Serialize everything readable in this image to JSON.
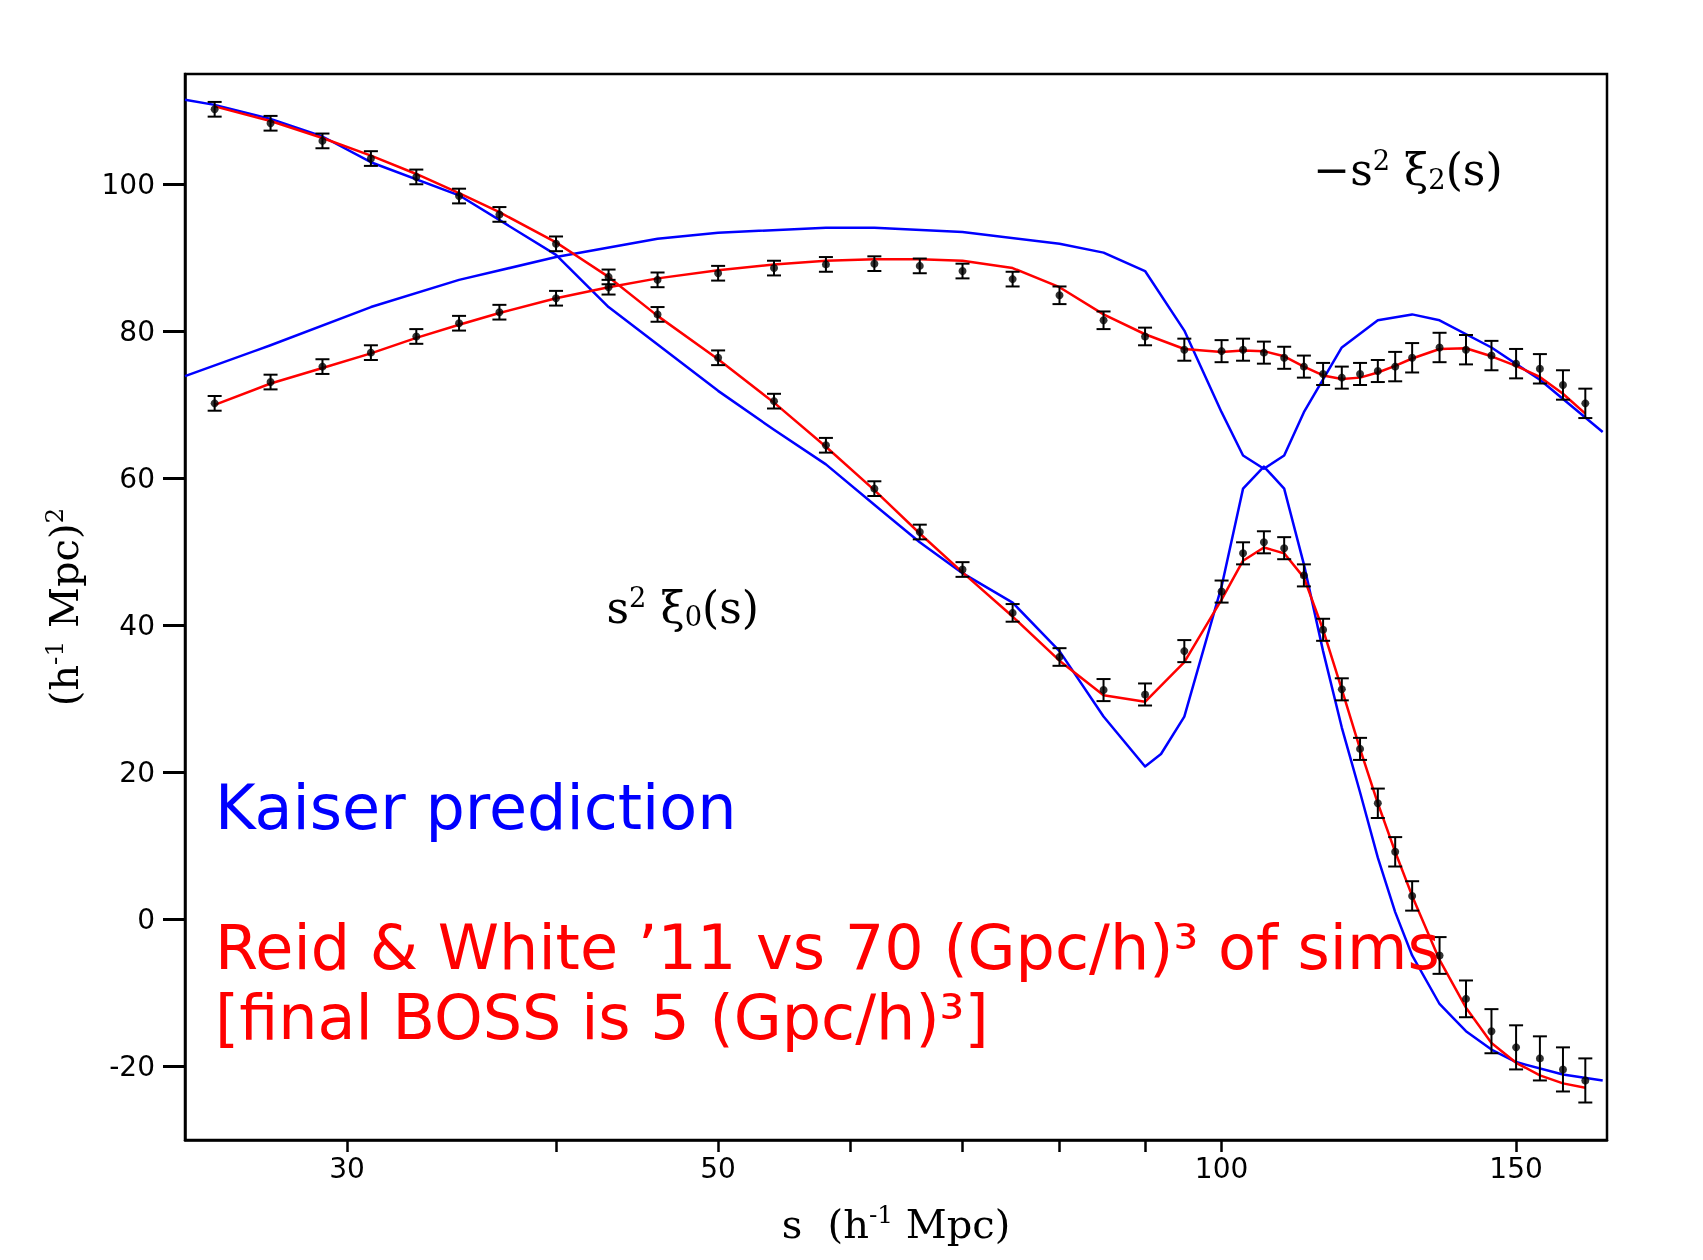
{
  "chart_data": {
    "type": "line",
    "xlabel": "s  (h$^{-1}$ Mpc)",
    "ylabel": "(h$^{-1}$ Mpc)$^{2}$",
    "annotations": [
      "−s$^{2}$ ξ$_{2}$(s)",
      "s$^{2}$ ξ$_{0}$(s)"
    ],
    "x": [
      25,
      27,
      29,
      31,
      33,
      35,
      37,
      40,
      43,
      46,
      50,
      54,
      58,
      62,
      66,
      70,
      75,
      80,
      85,
      90,
      95,
      100,
      103,
      106,
      109,
      112,
      115,
      118,
      121,
      124,
      127,
      130,
      135,
      140,
      145,
      150,
      155,
      160,
      165
    ],
    "series": [
      {
        "name": "Kaiser prediction",
        "color": "#0000ff",
        "x": [
          24,
          25,
          27,
          29,
          31,
          35,
          40,
          43,
          50,
          54,
          58,
          62,
          66,
          70,
          75,
          80,
          85,
          90,
          92,
          95,
          100,
          103,
          106,
          109,
          112,
          115,
          118,
          121,
          124,
          127,
          130,
          135,
          140,
          145,
          150,
          160,
          169
        ],
        "values": [
          111.5,
          110.8,
          108.9,
          106.5,
          103,
          98.5,
          90.4,
          83.3,
          71.9,
          66.6,
          61.9,
          56.4,
          51.3,
          47.1,
          43.1,
          36.5,
          27.6,
          20.8,
          22.5,
          27.6,
          45.3,
          58.6,
          61.6,
          58.6,
          48.3,
          36.5,
          26.1,
          17.3,
          8.4,
          1,
          -4.9,
          -11.5,
          -15.2,
          -17.7,
          -19.4,
          -21.1,
          -21.9
        ]
      },
      {
        "color": "#0000ff",
        "x": [
          24,
          27,
          31,
          35,
          40,
          46,
          50,
          58,
          62,
          70,
          80,
          85,
          90,
          95,
          100,
          103,
          106,
          109,
          112,
          118,
          124,
          130,
          135,
          145,
          155,
          169
        ],
        "values": [
          73.9,
          78.1,
          83.3,
          87,
          90.1,
          92.6,
          93.4,
          94.1,
          94.1,
          93.5,
          91.9,
          90.7,
          88.2,
          80.1,
          69,
          63.1,
          61.3,
          63.1,
          69,
          77.8,
          81.5,
          82.3,
          81.5,
          77.8,
          73.4,
          66.3
        ]
      },
      {
        "name": "Reid & White ’11 vs 70 (Gpc/h)³ of sims\n[final BOSS is 5 (Gpc/h)³]",
        "color": "#ff0000",
        "values": [
          110.6,
          108.6,
          106.3,
          103.9,
          101.4,
          98.8,
          96.2,
          92.1,
          87.4,
          82.1,
          76.2,
          70.3,
          64.3,
          58.4,
          52.5,
          47.2,
          41.2,
          35.2,
          30.5,
          29.6,
          35,
          43.5,
          48.8,
          50.6,
          49.8,
          46.5,
          39.4,
          31.3,
          23.2,
          15.8,
          9.2,
          3.2,
          -5.5,
          -12,
          -16.8,
          -19.5,
          -21.2,
          -22.3,
          -22.9
        ]
      },
      {
        "color": "#ff0000",
        "values": [
          70,
          72.9,
          75,
          77,
          79.1,
          80.9,
          82.5,
          84.5,
          86,
          87.2,
          88.3,
          89.1,
          89.6,
          89.8,
          89.8,
          89.6,
          88.6,
          86,
          82.3,
          79.6,
          77.6,
          77.2,
          77.4,
          77.3,
          76.6,
          75.2,
          74,
          73.5,
          73.7,
          74.4,
          75.3,
          76.3,
          77.6,
          77.7,
          76.6,
          75.3,
          73.8,
          71.5,
          68.8
        ]
      },
      {
        "type": "scatter",
        "color": "#000000",
        "values": [
          110.2,
          108.3,
          105.9,
          103.5,
          101,
          98.4,
          95.9,
          91.9,
          87.4,
          82.3,
          76.4,
          70.5,
          64.5,
          58.6,
          52.7,
          47.6,
          41.7,
          35.7,
          31.2,
          30.6,
          36.5,
          44.6,
          49.8,
          51.3,
          50.5,
          46.8,
          39.4,
          31.3,
          23.2,
          15.8,
          9.2,
          3.2,
          -4.9,
          -10.8,
          -15.2,
          -17.4,
          -18.9,
          -20.4,
          -21.9
        ],
        "errors": [
          1,
          1,
          1,
          1,
          1,
          1,
          1,
          1,
          1,
          1,
          1,
          1,
          1,
          1,
          1,
          1,
          1.2,
          1.2,
          1.5,
          1.5,
          1.5,
          1.5,
          1.5,
          1.5,
          1.5,
          1.5,
          1.5,
          1.5,
          1.5,
          2,
          2,
          2,
          2.5,
          2.5,
          3,
          3,
          3,
          3,
          3
        ]
      },
      {
        "type": "scatter",
        "color": "#000000",
        "values": [
          70.2,
          73.1,
          75.2,
          77.1,
          79.3,
          81.1,
          82.6,
          84.5,
          86,
          87,
          87.9,
          88.6,
          89.1,
          89.2,
          88.9,
          88.2,
          87.1,
          84.9,
          81.5,
          79.3,
          77.5,
          77.3,
          77.5,
          77.1,
          76.4,
          75.2,
          74.2,
          73.7,
          74.2,
          74.6,
          75.2,
          76.4,
          77.8,
          77.5,
          76.7,
          75.6,
          74.9,
          72.7,
          70.2
        ],
        "errors": [
          1,
          1,
          1,
          1,
          1,
          1,
          1,
          1,
          1,
          1,
          1,
          1,
          1,
          1,
          1,
          1,
          1,
          1.2,
          1.2,
          1.2,
          1.5,
          1.5,
          1.5,
          1.5,
          1.5,
          1.5,
          1.5,
          1.5,
          1.5,
          1.5,
          2,
          2,
          2,
          2,
          2,
          2,
          2,
          2,
          2
        ]
      }
    ],
    "log": "x",
    "xlim": [
      24,
      170
    ],
    "xticks": [
      30,
      {
        "value": 40,
        "label": null
      },
      50,
      {
        "value": 60,
        "label": null
      },
      {
        "value": 70,
        "label": null
      },
      {
        "value": 80,
        "label": null
      },
      {
        "value": 90,
        "label": null
      },
      100,
      150
    ],
    "ylim": [
      -30,
      115
    ],
    "yticks": [
      -20,
      0,
      20,
      40,
      60,
      80,
      100
    ],
    "grid": false,
    "legend": false,
    "line_style": "solid"
  }
}
